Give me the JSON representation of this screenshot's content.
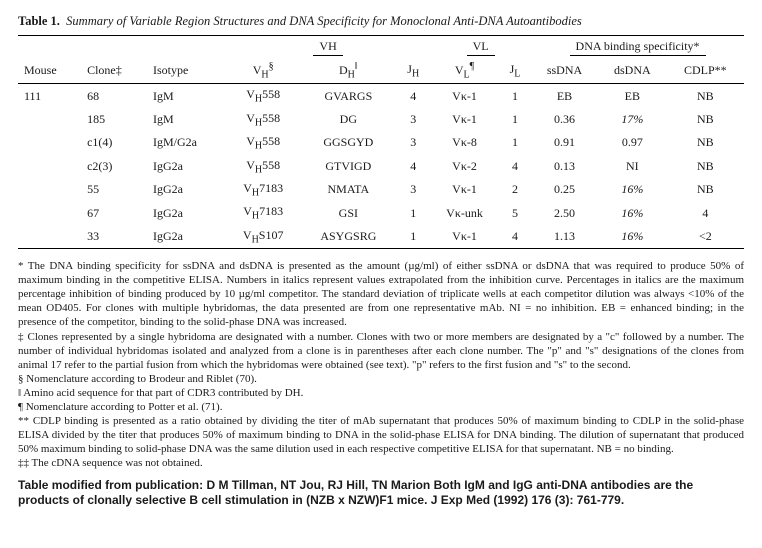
{
  "title_lead": "Table 1.",
  "title_rest": "Summary of Variable Region Structures and DNA Specificity for Monoclonal Anti-DNA Autoantibodies",
  "group_headers": {
    "vh": "VH",
    "vl": "VL",
    "dna": "DNA binding specificity*"
  },
  "col_headers": {
    "mouse": "Mouse",
    "clone": "Clone‡",
    "isotype": "Isotype",
    "vh": "V",
    "vh_sub": "H",
    "vh_sup": "§",
    "dh": "D",
    "dh_sub": "H",
    "dh_sup": "‖",
    "jh": "J",
    "jh_sub": "H",
    "vl": "V",
    "vl_sub": "L",
    "vl_sup": "¶",
    "jl": "J",
    "jl_sub": "L",
    "ss": "ssDNA",
    "ds": "dsDNA",
    "cdlp": "CDLP**"
  },
  "mouse": "111",
  "rows": [
    {
      "clone": "68",
      "iso": "IgM",
      "vh": "V_H558",
      "dh": "GVARGS",
      "jh": "4",
      "vl": "Vκ-1",
      "jl": "1",
      "ss": "EB",
      "ds": "EB",
      "ds_italic": false,
      "cdlp": "NB"
    },
    {
      "clone": "185",
      "iso": "IgM",
      "vh": "V_H558",
      "dh": "DG",
      "jh": "3",
      "vl": "Vκ-1",
      "jl": "1",
      "ss": "0.36",
      "ds": "17%",
      "ds_italic": true,
      "cdlp": "NB"
    },
    {
      "clone": "c1(4)",
      "iso": "IgM/G2a",
      "vh": "V_H558",
      "dh": "GGSGYD",
      "jh": "3",
      "vl": "Vκ-8",
      "jl": "1",
      "ss": "0.91",
      "ds": "0.97",
      "ds_italic": false,
      "cdlp": "NB"
    },
    {
      "clone": "c2(3)",
      "iso": "IgG2a",
      "vh": "V_H558",
      "dh": "GTVIGD",
      "jh": "4",
      "vl": "Vκ-2",
      "jl": "4",
      "ss": "0.13",
      "ds": "NI",
      "ds_italic": false,
      "cdlp": "NB"
    },
    {
      "clone": "55",
      "iso": "IgG2a",
      "vh": "V_H7183",
      "dh": "NMATA",
      "jh": "3",
      "vl": "Vκ-1",
      "jl": "2",
      "ss": "0.25",
      "ds": "16%",
      "ds_italic": true,
      "cdlp": "NB"
    },
    {
      "clone": "67",
      "iso": "IgG2a",
      "vh": "V_H7183",
      "dh": "GSI",
      "jh": "1",
      "vl": "Vκ-unk",
      "jl": "5",
      "ss": "2.50",
      "ds": "16%",
      "ds_italic": true,
      "cdlp": "4"
    },
    {
      "clone": "33",
      "iso": "IgG2a",
      "vh": "V_HS107",
      "dh": "ASYGSRG",
      "jh": "1",
      "vl": "Vκ-1",
      "jl": "4",
      "ss": "1.13",
      "ds": "16%",
      "ds_italic": true,
      "cdlp": "<2"
    }
  ],
  "footnotes": [
    "* The DNA binding specificity for ssDNA and dsDNA is presented as the amount (µg/ml) of either ssDNA or dsDNA that was required to produce 50% of maximum binding in the competitive ELISA. Numbers in italics represent values extrapolated from the inhibition curve. Percentages in italics are the maximum percentage inhibition of binding produced by 10 µg/ml competitor. The standard deviation of triplicate wells at each competitor dilution was always <10% of the mean OD405. For clones with multiple hybridomas, the data presented are from one representative mAb. NI = no inhibition. EB = enhanced binding; in the presence of the competitor, binding to the solid-phase DNA was increased.",
    "‡ Clones represented by a single hybridoma are designated with a number. Clones with two or more members are designated by a \"c\" followed by a number. The number of individual hybridomas isolated and analyzed from a clone is in parentheses after each clone number. The \"p\" and \"s\" designations of the clones from animal 17 refer to the partial fusion from which the hybridomas were obtained (see text). \"p\" refers to the first fusion and \"s\" to the second.",
    "§ Nomenclature according to Brodeur and Riblet (70).",
    "‖ Amino acid sequence for that part of CDR3 contributed by DH.",
    "¶ Nomenclature according to Potter et al. (71).",
    "** CDLP binding is presented as a ratio obtained by dividing the titer of mAb supernatant that produces 50% of maximum binding to CDLP in the solid-phase ELISA divided by the titer that produces 50% of maximum binding to DNA in the solid-phase ELISA for DNA binding. The dilution of supernatant that produced 50% maximum binding to solid-phase DNA was the same dilution used in each respective competitive ELISA for that supernatant. NB = no binding.",
    "‡‡ The cDNA sequence was not obtained."
  ],
  "citation": "Table modified from publication: D M Tillman, NT Jou, RJ Hill, TN Marion Both IgM and IgG anti-DNA antibodies are the products of clonally selective B cell stimulation in (NZB x NZW)F1 mice. J Exp Med (1992) 176 (3): 761-779."
}
